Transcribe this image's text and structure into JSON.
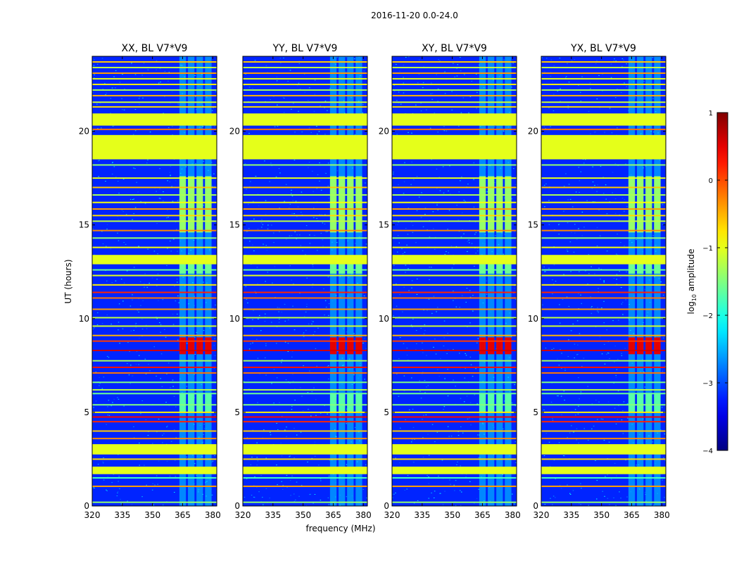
{
  "chart_data": {
    "type": "heatmap",
    "suptitle": "2016-11-20 0.0-24.0",
    "xlabel": "frequency (MHz)",
    "ylabel": "UT (hours)",
    "xlim": [
      320,
      382
    ],
    "ylim": [
      0,
      24
    ],
    "xticks": [
      320,
      335,
      350,
      365,
      380
    ],
    "yticks": [
      0,
      5,
      10,
      15,
      20
    ],
    "panels": [
      {
        "title": "XX, BL V7*V9"
      },
      {
        "title": "YY, BL V7*V9"
      },
      {
        "title": "XY, BL V7*V9"
      },
      {
        "title": "YX, BL V7*V9"
      }
    ],
    "colormap": "jet",
    "colorbar": {
      "label": "log10 amplitude",
      "min": -4,
      "max": 1,
      "ticks": [
        1,
        0,
        -1,
        -2,
        -3,
        -4
      ],
      "tick_labels": [
        "1",
        "0",
        "−1",
        "−2",
        "−3",
        "−4"
      ]
    },
    "background_level": -3.2,
    "flagged_level": -1.0,
    "rfi_band_mhz": [
      363,
      380
    ],
    "flagged_blocks_hours": [
      [
        18.5,
        19.8
      ],
      [
        20.3,
        20.95
      ],
      [
        12.9,
        13.4
      ],
      [
        1.7,
        2.1
      ],
      [
        2.75,
        3.3
      ]
    ],
    "rfi_lines_hours": [
      {
        "t": 0.2,
        "v": -1.4
      },
      {
        "t": 1.05,
        "v": -0.4
      },
      {
        "t": 1.5,
        "v": -1.8
      },
      {
        "t": 2.5,
        "v": -0.7
      },
      {
        "t": 3.6,
        "v": -0.3
      },
      {
        "t": 4.0,
        "v": -0.6
      },
      {
        "t": 4.5,
        "v": 0.2
      },
      {
        "t": 4.75,
        "v": 0.4
      },
      {
        "t": 5.0,
        "v": -0.8
      },
      {
        "t": 5.4,
        "v": -1.5
      },
      {
        "t": 6.0,
        "v": -1.6
      },
      {
        "t": 6.2,
        "v": -1.2
      },
      {
        "t": 6.6,
        "v": -1.5
      },
      {
        "t": 7.1,
        "v": -0.2
      },
      {
        "t": 7.4,
        "v": 0.3
      },
      {
        "t": 7.75,
        "v": -1.3
      },
      {
        "t": 8.3,
        "v": 0.6
      },
      {
        "t": 8.8,
        "v": 0.1
      },
      {
        "t": 9.1,
        "v": -0.5
      },
      {
        "t": 9.6,
        "v": -1.1
      },
      {
        "t": 10.05,
        "v": -1.2
      },
      {
        "t": 10.5,
        "v": -0.4
      },
      {
        "t": 11.1,
        "v": -0.2
      },
      {
        "t": 11.4,
        "v": 0.2
      },
      {
        "t": 11.8,
        "v": -0.8
      },
      {
        "t": 12.3,
        "v": -1.0
      },
      {
        "t": 12.6,
        "v": -1.6
      },
      {
        "t": 13.8,
        "v": -0.9
      },
      {
        "t": 14.3,
        "v": -1.4
      },
      {
        "t": 14.7,
        "v": -0.3
      },
      {
        "t": 15.2,
        "v": -1.2
      },
      {
        "t": 15.5,
        "v": -0.7
      },
      {
        "t": 15.85,
        "v": -0.4
      },
      {
        "t": 16.2,
        "v": -0.9
      },
      {
        "t": 16.6,
        "v": -1.3
      },
      {
        "t": 17.0,
        "v": -0.6
      },
      {
        "t": 17.5,
        "v": -1.0
      },
      {
        "t": 18.2,
        "v": -1.4
      },
      {
        "t": 20.1,
        "v": -0.2
      },
      {
        "t": 21.3,
        "v": -0.7
      },
      {
        "t": 21.55,
        "v": -1.1
      },
      {
        "t": 21.9,
        "v": -0.5
      },
      {
        "t": 22.2,
        "v": -1.3
      },
      {
        "t": 22.5,
        "v": -0.8
      },
      {
        "t": 22.8,
        "v": -1.0
      },
      {
        "t": 23.1,
        "v": -0.4
      },
      {
        "t": 23.4,
        "v": -1.2
      },
      {
        "t": 23.7,
        "v": -0.6
      }
    ],
    "rfi_bursts_hours": [
      {
        "from": 8.1,
        "to": 9.0,
        "v": 0.5
      },
      {
        "from": 14.6,
        "to": 17.6,
        "v": -1.4
      },
      {
        "from": 5.0,
        "to": 6.0,
        "v": -1.7
      },
      {
        "from": 12.4,
        "to": 12.9,
        "v": -1.6
      }
    ]
  }
}
